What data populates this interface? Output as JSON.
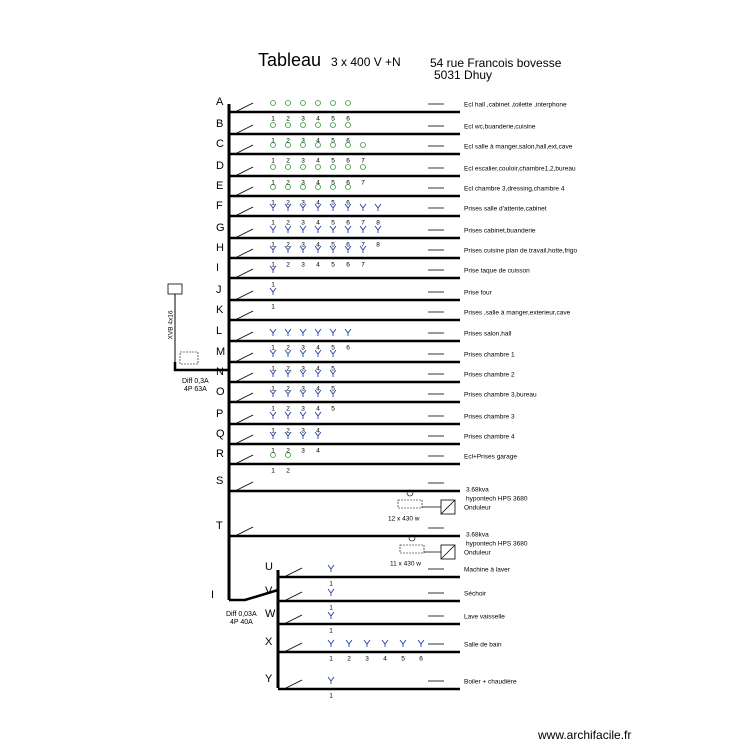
{
  "header": {
    "title": "Tableau",
    "voltage": "3 x 400 V +N",
    "address_line1": "54 rue Francois bovesse",
    "address_line2": "5031 Dhuy"
  },
  "supply": {
    "cable": "XVB 4x16",
    "main_diff": "Diff 0,3A",
    "main_poles": "4P  63A",
    "sub_letter": "I",
    "sub_diff": "Diff 0,03A",
    "sub_poles": "4P  40A"
  },
  "circuits": [
    {
      "letter": "A",
      "label": "Ecl hall ,cabinet ,toilette ,interphone",
      "points": [
        "1",
        "2",
        "3",
        "4",
        "5",
        "6"
      ]
    },
    {
      "letter": "B",
      "label": "Ecl wc,buanderie,cuisine",
      "points": [
        "1",
        "2",
        "3",
        "4",
        "5",
        "6"
      ]
    },
    {
      "letter": "C",
      "label": "Ecl salle à manger,salon,hall,ext,cave",
      "points": [
        "1",
        "2",
        "3",
        "4",
        "5",
        "6",
        "7"
      ]
    },
    {
      "letter": "D",
      "label": "Ecl escalier,couloir,chambre1,2,bureau",
      "points": [
        "1",
        "2",
        "3",
        "4",
        "5",
        "6",
        "7"
      ]
    },
    {
      "letter": "E",
      "label": "Ecl chambre 3,dressing,chambre 4",
      "points": [
        "1",
        "2",
        "3",
        "4",
        "5",
        "6"
      ]
    },
    {
      "letter": "F",
      "label": "Prises salle d'attente,cabinet",
      "points": [
        "1",
        "2",
        "3",
        "4",
        "5",
        "6",
        "7",
        "8"
      ]
    },
    {
      "letter": "G",
      "label": "Prises cabinet,buanderie",
      "points": [
        "1",
        "2",
        "3",
        "4",
        "5",
        "6",
        "7",
        "8"
      ]
    },
    {
      "letter": "H",
      "label": "Prises  cuisine plan de travail,hotte,frigo",
      "points": [
        "1",
        "2",
        "3",
        "4",
        "5",
        "6",
        "7"
      ]
    },
    {
      "letter": "I",
      "label": "Prise  taque de cuisson",
      "points": [
        "1"
      ]
    },
    {
      "letter": "J",
      "label": "Prise  four",
      "points": [
        "1"
      ]
    },
    {
      "letter": "K",
      "label": "Prises ,salle à manger,exterieur,cave",
      "points": []
    },
    {
      "letter": "L",
      "label": "Prises salon,hall",
      "points": [
        "1",
        "2",
        "3",
        "4",
        "5",
        "6"
      ]
    },
    {
      "letter": "M",
      "label": "Prises chambre 1",
      "points": [
        "1",
        "2",
        "3",
        "4",
        "5"
      ]
    },
    {
      "letter": "N",
      "label": "Prises chambre 2",
      "points": [
        "1",
        "2",
        "3",
        "4",
        "5"
      ]
    },
    {
      "letter": "O",
      "label": "Prises chambre 3,bureau",
      "points": [
        "1",
        "2",
        "3",
        "4",
        "5"
      ]
    },
    {
      "letter": "P",
      "label": "Prises chambre 3",
      "points": [
        "1",
        "2",
        "3",
        "4"
      ]
    },
    {
      "letter": "Q",
      "label": "Prises chambre 4",
      "points": [
        "1",
        "2",
        "3",
        "4"
      ]
    },
    {
      "letter": "R",
      "label": "Ecl+Prises garage",
      "points": [
        "1",
        "2"
      ]
    },
    {
      "letter": "S",
      "label": "",
      "points": []
    },
    {
      "letter": "T",
      "label": "",
      "points": []
    },
    {
      "letter": "U",
      "label": "Machine à laver",
      "points": [
        "1"
      ]
    },
    {
      "letter": "V",
      "label": "Séchoir",
      "points": [
        "1"
      ]
    },
    {
      "letter": "W",
      "label": "Lave vaisselle",
      "points": [
        "1"
      ]
    },
    {
      "letter": "X",
      "label": "Salle de bain",
      "points": [
        "1",
        "2",
        "3",
        "4",
        "5",
        "6"
      ]
    },
    {
      "letter": "Y",
      "label": "Boiler + chaudière",
      "points": [
        "1"
      ]
    }
  ],
  "inverters": [
    {
      "power": "3.68kva",
      "model": "hypontech HPS 3680",
      "name": "Onduleur",
      "panels": "12 x 430 w"
    },
    {
      "power": "3.68kva",
      "model": "hypontech HPS 3680",
      "name": "Onduleur",
      "panels": "11 x 430 w"
    }
  ],
  "footer": "www.archifacile.fr"
}
